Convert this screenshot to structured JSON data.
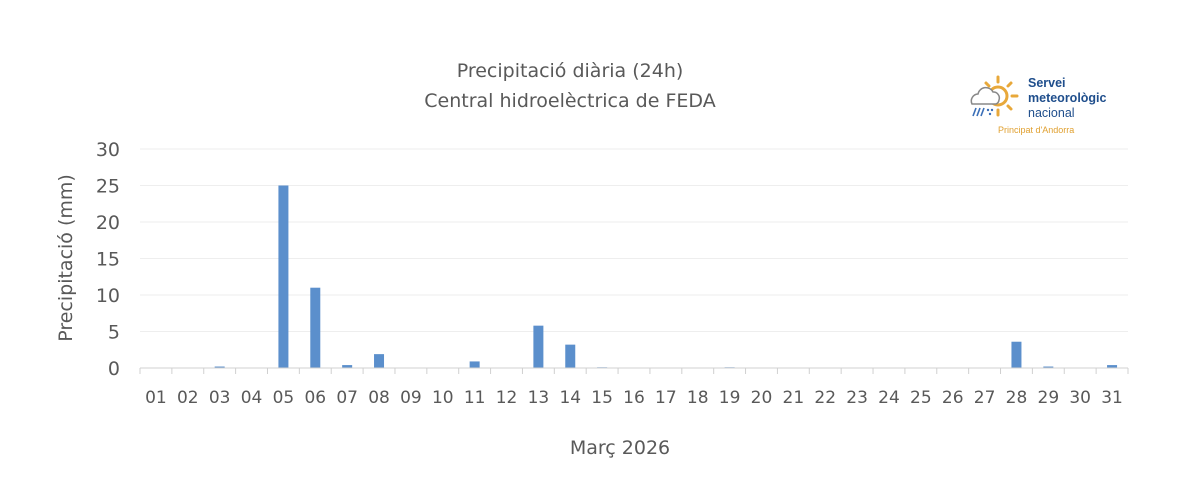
{
  "chart_data": {
    "type": "bar",
    "title": "Precipitació diària (24h)",
    "subtitle": "Central hidroelèctrica de FEDA",
    "xlabel": "Març 2026",
    "ylabel": "Precipitació (mm)",
    "ylim": [
      0,
      30
    ],
    "yticks": [
      0,
      5,
      10,
      15,
      20,
      25,
      30
    ],
    "grid": true,
    "categories": [
      "01",
      "02",
      "03",
      "04",
      "05",
      "06",
      "07",
      "08",
      "09",
      "10",
      "11",
      "12",
      "13",
      "14",
      "15",
      "16",
      "17",
      "18",
      "19",
      "20",
      "21",
      "22",
      "23",
      "24",
      "25",
      "26",
      "27",
      "28",
      "29",
      "30",
      "31"
    ],
    "values": [
      0,
      0,
      0.2,
      0,
      25,
      11,
      0.4,
      1.9,
      0,
      0,
      0.9,
      0,
      5.8,
      3.2,
      0.1,
      0,
      0,
      0,
      0.1,
      0,
      0,
      0,
      0,
      0,
      0,
      0,
      0,
      3.6,
      0.2,
      0,
      0.4
    ],
    "bar_color": "#5b8fcc"
  },
  "logo": {
    "line1": "Servei",
    "line2": "meteorològic",
    "line3": "nacional",
    "line4": "Principat d'Andorra"
  }
}
